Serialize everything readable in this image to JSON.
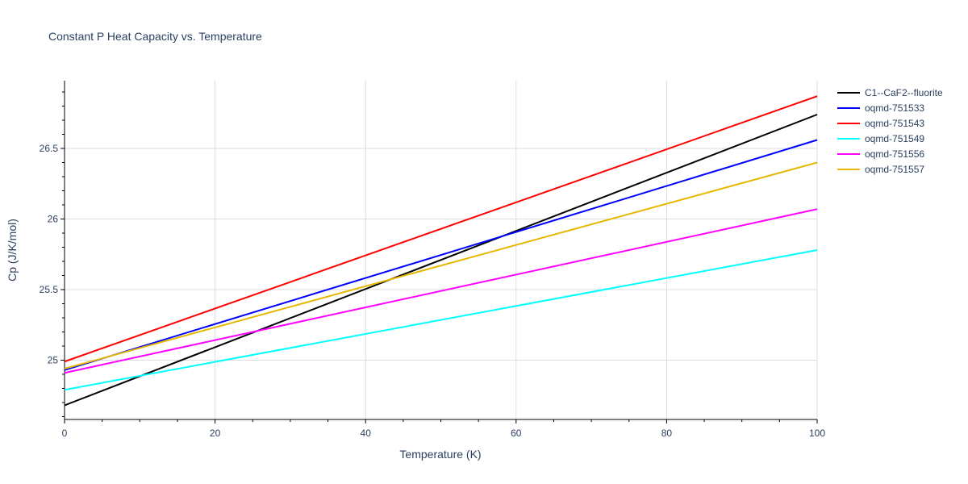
{
  "chart_data": {
    "type": "line",
    "title": "Constant P Heat Capacity vs. Temperature",
    "xlabel": "Temperature (K)",
    "ylabel": "Cp (J/K/mol)",
    "xlim": [
      0,
      100
    ],
    "ylim": [
      24.58,
      26.98
    ],
    "x_ticks": [
      0,
      20,
      40,
      60,
      80,
      100
    ],
    "x_tick_labels": [
      "0",
      "20",
      "40",
      "60",
      "80",
      "100"
    ],
    "y_ticks": [
      25,
      25.5,
      26,
      26.5
    ],
    "y_tick_labels": [
      "25",
      "25.5",
      "26",
      "26.5"
    ],
    "grid": true,
    "legend_position": "right",
    "series": [
      {
        "name": "C1--CaF2--fluorite",
        "color": "#000000",
        "x": [
          0,
          100
        ],
        "y": [
          24.68,
          26.74
        ]
      },
      {
        "name": "oqmd-751533",
        "color": "#0000ff",
        "x": [
          0,
          100
        ],
        "y": [
          24.93,
          26.56
        ]
      },
      {
        "name": "oqmd-751543",
        "color": "#ff0000",
        "x": [
          0,
          100
        ],
        "y": [
          24.99,
          26.87
        ]
      },
      {
        "name": "oqmd-751549",
        "color": "#00ffff",
        "x": [
          0,
          100
        ],
        "y": [
          24.79,
          25.78
        ]
      },
      {
        "name": "oqmd-751556",
        "color": "#ff00ff",
        "x": [
          0,
          100
        ],
        "y": [
          24.91,
          26.07
        ]
      },
      {
        "name": "oqmd-751557",
        "color": "#e6b800",
        "x": [
          0,
          100
        ],
        "y": [
          24.94,
          26.4
        ]
      }
    ]
  }
}
